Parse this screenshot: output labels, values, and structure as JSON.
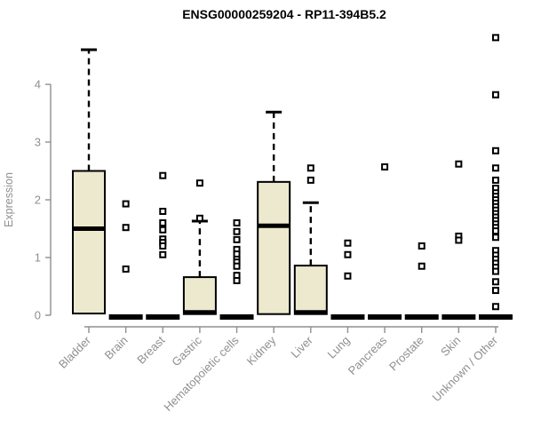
{
  "chart_data": {
    "type": "boxplot",
    "title": "ENSG00000259204 - RP11-394B5.2",
    "ylabel": "Expression",
    "xlabel": "",
    "ylim": [
      0,
      4.85
    ],
    "yticks": [
      0,
      1,
      2,
      3,
      4
    ],
    "grid": false,
    "legend": "none",
    "categories": [
      "Bladder",
      "Brain",
      "Breast",
      "Gastric",
      "Hematopoietic cells",
      "Kidney",
      "Liver",
      "Lung",
      "Pancreas",
      "Prostate",
      "Skin",
      "Unknown / Other"
    ],
    "groups": [
      {
        "label": "Bladder",
        "flat": false,
        "q1": 0.03,
        "median": 1.5,
        "q3": 2.5,
        "whisker_high": 4.6,
        "outliers": []
      },
      {
        "label": "Brain",
        "flat": true,
        "median": 0,
        "outliers": [
          1.93,
          1.52,
          0.8
        ]
      },
      {
        "label": "Breast",
        "flat": true,
        "median": 0,
        "outliers": [
          2.42,
          1.8,
          1.6,
          1.48,
          1.32,
          1.26,
          1.2,
          1.05
        ]
      },
      {
        "label": "Gastric",
        "flat": false,
        "q1": 0.02,
        "median": 0.05,
        "q3": 0.66,
        "whisker_high": 1.63,
        "outliers": [
          2.29,
          1.68
        ]
      },
      {
        "label": "Hematopoietic cells",
        "flat": true,
        "median": 0,
        "outliers": [
          1.6,
          1.45,
          1.31,
          1.14,
          1.06,
          0.97,
          0.92,
          0.85,
          0.69,
          0.6
        ]
      },
      {
        "label": "Kidney",
        "flat": false,
        "q1": 0.02,
        "median": 1.55,
        "q3": 2.31,
        "whisker_high": 3.52,
        "outliers": []
      },
      {
        "label": "Liver",
        "flat": false,
        "q1": 0.02,
        "median": 0.05,
        "q3": 0.86,
        "whisker_high": 1.95,
        "outliers": [
          2.55,
          2.34
        ]
      },
      {
        "label": "Lung",
        "flat": true,
        "median": 0,
        "outliers": [
          1.25,
          1.05,
          0.68
        ]
      },
      {
        "label": "Pancreas",
        "flat": true,
        "median": 0,
        "outliers": [
          2.57
        ]
      },
      {
        "label": "Prostate",
        "flat": true,
        "median": 0,
        "outliers": [
          1.2,
          0.85
        ]
      },
      {
        "label": "Skin",
        "flat": true,
        "median": 0,
        "outliers": [
          2.62,
          1.37,
          1.3
        ]
      },
      {
        "label": "Unknown / Other",
        "flat": true,
        "median": 0,
        "outliers": [
          4.81,
          3.82,
          2.85,
          2.55,
          2.34,
          2.2,
          2.12,
          2.06,
          2.0,
          1.94,
          1.88,
          1.82,
          1.76,
          1.7,
          1.64,
          1.58,
          1.52,
          1.46,
          1.35,
          1.12,
          1.04,
          0.97,
          0.9,
          0.83,
          0.76,
          0.58,
          0.43,
          0.15
        ]
      }
    ],
    "colors": {
      "box_fill": "#EDE9CE",
      "box_stroke": "#000000",
      "median": "#000000",
      "whisker": "#000000",
      "outlier_stroke": "#000000",
      "axis": "#8f8f8f",
      "tick_label": "#8f8f8f",
      "title": "#000000",
      "background": "#ffffff"
    }
  }
}
